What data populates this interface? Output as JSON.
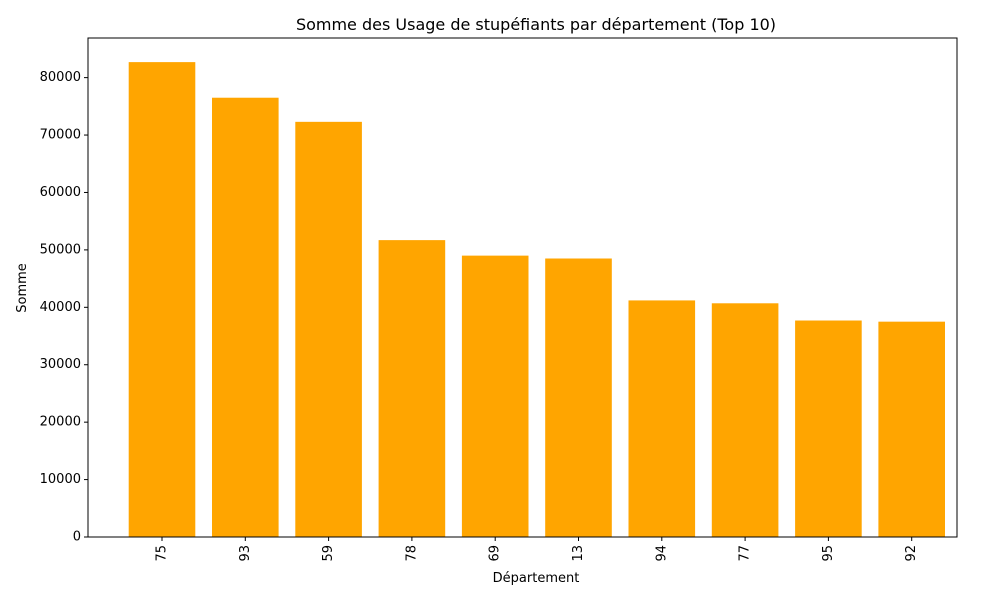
{
  "chart_data": {
    "type": "bar",
    "title": "Somme des Usage de stupéfiants par département (Top 10)",
    "xlabel": "Département",
    "ylabel": "Somme",
    "categories": [
      "75",
      "93",
      "59",
      "78",
      "69",
      "13",
      "94",
      "77",
      "95",
      "92"
    ],
    "values": [
      82700,
      76500,
      72300,
      51700,
      49000,
      48500,
      41200,
      40700,
      37700,
      37500
    ],
    "ylim": [
      0,
      86900
    ],
    "yticks": [
      0,
      10000,
      20000,
      30000,
      40000,
      50000,
      60000,
      70000,
      80000
    ],
    "ytick_labels": [
      "0",
      "10000",
      "20000",
      "30000",
      "40000",
      "50000",
      "60000",
      "70000",
      "80000"
    ],
    "x_tick_rotation": "vertical",
    "grid": false,
    "legend": "none",
    "bar_color": "#ffa500"
  }
}
